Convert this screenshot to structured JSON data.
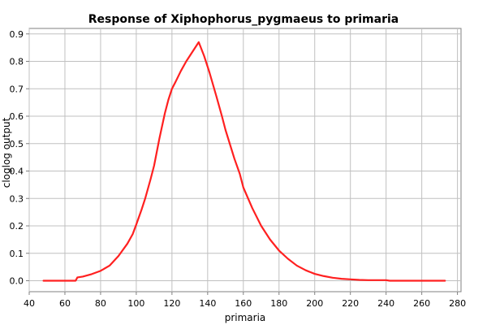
{
  "chart_data": {
    "type": "line",
    "title": "Response of Xiphophorus_pygmaeus to primaria",
    "xlabel": "primaria",
    "ylabel": "cloglog output",
    "xlim": [
      40,
      282
    ],
    "ylim": [
      -0.04,
      0.92
    ],
    "x_ticks": [
      40,
      60,
      80,
      100,
      120,
      140,
      160,
      180,
      200,
      220,
      240,
      260,
      280
    ],
    "y_ticks": [
      0.0,
      0.1,
      0.2,
      0.3,
      0.4,
      0.5,
      0.6,
      0.7,
      0.8,
      0.9
    ],
    "x_tick_labels": [
      "40",
      "60",
      "80",
      "100",
      "120",
      "140",
      "160",
      "180",
      "200",
      "220",
      "240",
      "260",
      "280"
    ],
    "y_tick_labels": [
      "0.0",
      "0.1",
      "0.2",
      "0.3",
      "0.4",
      "0.5",
      "0.6",
      "0.7",
      "0.8",
      "0.9"
    ],
    "grid": true,
    "series": [
      {
        "color": "#ff2020",
        "x": [
          48,
          56,
          62,
          66,
          67,
          70,
          75,
          80,
          85,
          90,
          95,
          98,
          100,
          103,
          105,
          108,
          110,
          113,
          116,
          118,
          120,
          122,
          125,
          128,
          132,
          135,
          138,
          141,
          145,
          148,
          150,
          155,
          158,
          160,
          165,
          170,
          175,
          180,
          185,
          190,
          195,
          200,
          205,
          210,
          215,
          220,
          225,
          230,
          235,
          240,
          242,
          250,
          260,
          273
        ],
        "y": [
          0.0,
          0.0,
          0.0,
          0.0,
          0.012,
          0.015,
          0.024,
          0.036,
          0.055,
          0.09,
          0.135,
          0.17,
          0.205,
          0.26,
          0.3,
          0.37,
          0.42,
          0.52,
          0.61,
          0.66,
          0.7,
          0.725,
          0.765,
          0.8,
          0.84,
          0.87,
          0.82,
          0.76,
          0.67,
          0.6,
          0.55,
          0.445,
          0.39,
          0.34,
          0.265,
          0.2,
          0.15,
          0.11,
          0.08,
          0.055,
          0.038,
          0.025,
          0.017,
          0.011,
          0.007,
          0.005,
          0.003,
          0.002,
          0.002,
          0.002,
          0.0,
          0.0,
          0.0,
          0.0
        ]
      }
    ]
  }
}
